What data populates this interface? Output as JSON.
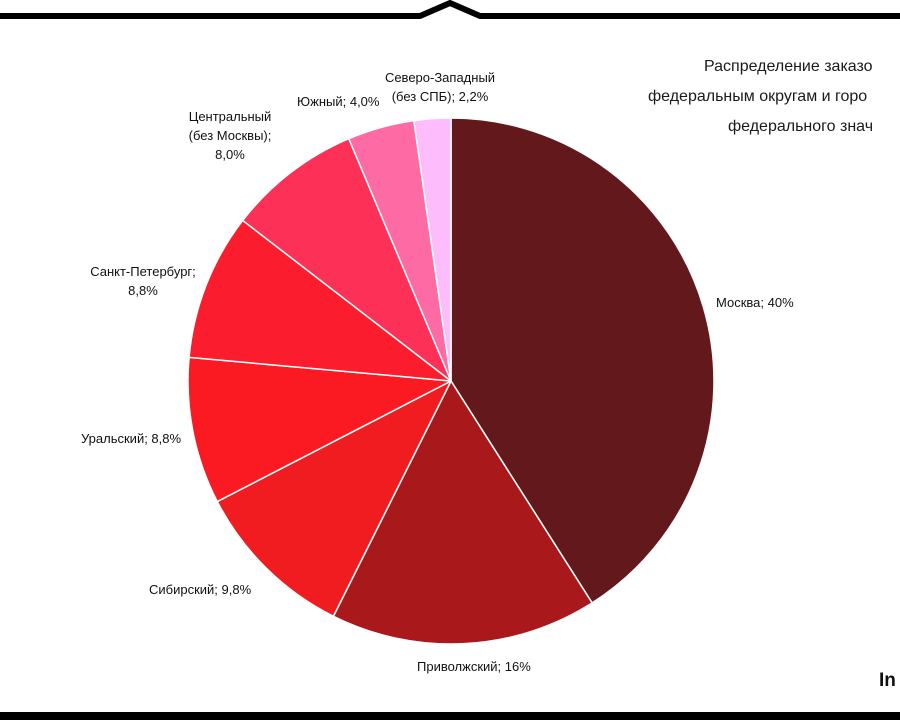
{
  "title_lines": [
    "Распределение заказо",
    "федеральным округам и горо",
    "федерального знач"
  ],
  "logo": "In",
  "chart_data": {
    "type": "pie",
    "slices": [
      {
        "label": "Москва; 40%",
        "value": 40.0,
        "color": "#63191b"
      },
      {
        "label": "Приволжский; 16%",
        "value": 16.0,
        "color": "#a9191b"
      },
      {
        "label": "Сибирский; 9,8%",
        "value": 9.8,
        "color": "#f01c20"
      },
      {
        "label": "Уральский; 8,8%",
        "value": 8.8,
        "color": "#fb1a22"
      },
      {
        "label": "Санкт-Петербург; 8,8%",
        "value": 8.8,
        "color": "#fb1d2e"
      },
      {
        "label": "Центральный (без Москвы); 8,0%",
        "value": 8.0,
        "color": "#fd3057"
      },
      {
        "label": "Южный; 4,0%",
        "value": 4.0,
        "color": "#fd6aa4"
      },
      {
        "label": "Северо-Западный (без СПБ); 2,2%",
        "value": 2.2,
        "color": "#fdbdfd"
      }
    ]
  },
  "labels": {
    "moscow": [
      "Москва; 40%"
    ],
    "privolzh": [
      "Приволжский; 16%"
    ],
    "sibir": [
      "Сибирский; 9,8%"
    ],
    "ural": [
      "Уральский; 8,8%"
    ],
    "spb": [
      "Санкт-Петербург;",
      "8,8%"
    ],
    "central": [
      "Центральный",
      "(без Москвы);",
      "8,0%"
    ],
    "south": [
      "Южный; 4,0%"
    ],
    "northwest": [
      "Северо-Западный",
      "(без СПБ); 2,2%"
    ]
  }
}
